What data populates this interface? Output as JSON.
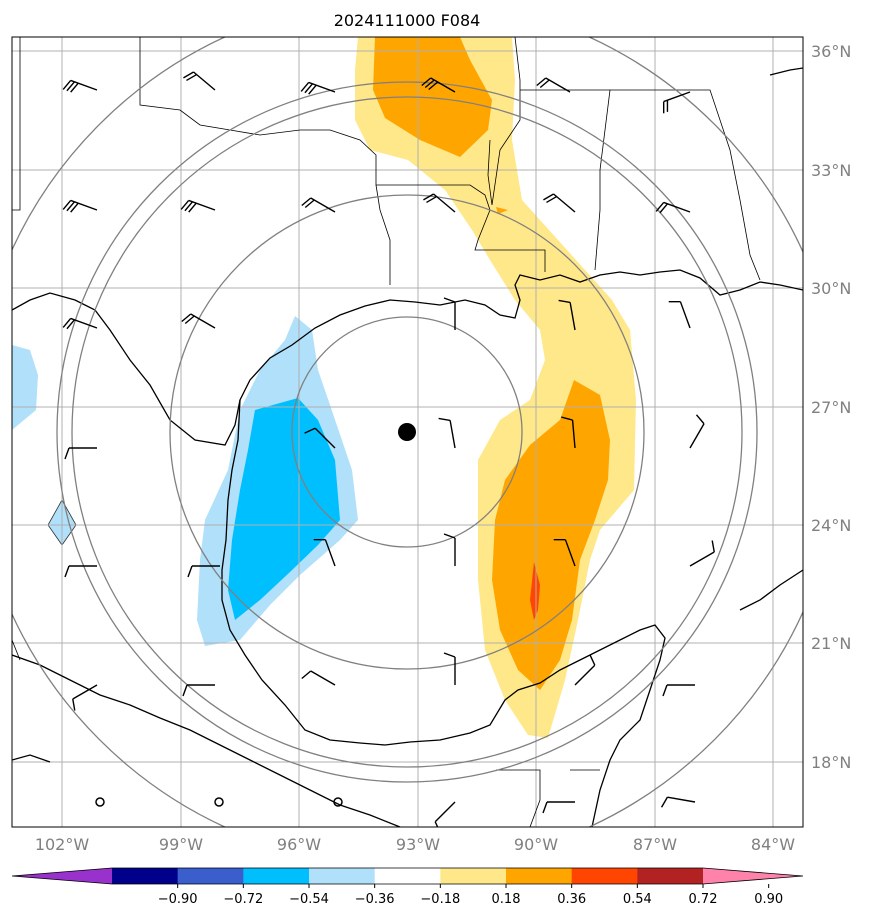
{
  "title": "2024111000 F084",
  "lat_labels": [
    "36°N",
    "33°N",
    "30°N",
    "27°N",
    "24°N",
    "21°N",
    "18°N"
  ],
  "lon_labels": [
    "102°W",
    "99°W",
    "96°W",
    "93°W",
    "90°W",
    "87°W",
    "84°W"
  ],
  "colorbar": {
    "ticks": [
      "−0.90",
      "−0.72",
      "−0.54",
      "−0.36",
      "−0.18",
      "0.18",
      "0.36",
      "0.54",
      "0.72",
      "0.90"
    ],
    "colors": [
      "#9932cc",
      "#00008b",
      "#3a5fcd",
      "#00bfff",
      "#b0e0fa",
      "#ffffff",
      "#ffe88a",
      "#ffa500",
      "#ff4500",
      "#b22222",
      "#ff82ab"
    ]
  },
  "center_marker": {
    "lat": 26.3,
    "lon": -93.3
  },
  "rings_deg": [
    3,
    5.5,
    8,
    10.5
  ]
}
